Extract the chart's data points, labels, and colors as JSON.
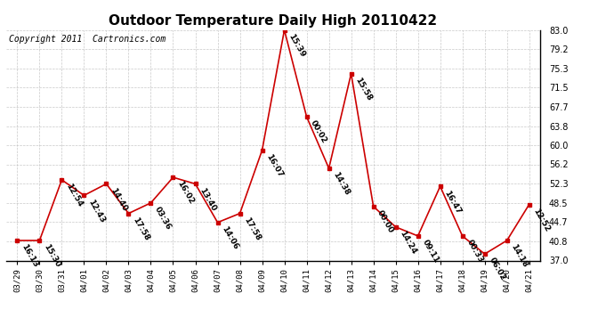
{
  "title": "Outdoor Temperature Daily High 20110422",
  "copyright": "Copyright 2011  Cartronics.com",
  "x_labels": [
    "03/29",
    "03/30",
    "03/31",
    "04/01",
    "04/02",
    "04/03",
    "04/04",
    "04/05",
    "04/06",
    "04/07",
    "04/08",
    "04/09",
    "04/10",
    "04/11",
    "04/12",
    "04/13",
    "04/14",
    "04/15",
    "04/16",
    "04/17",
    "04/18",
    "04/19",
    "04/20",
    "04/21"
  ],
  "y_values": [
    41.0,
    41.0,
    53.1,
    50.0,
    52.3,
    46.4,
    48.5,
    53.6,
    52.3,
    44.6,
    46.4,
    59.0,
    83.0,
    65.7,
    55.4,
    74.3,
    47.8,
    43.7,
    41.9,
    51.8,
    41.9,
    38.3,
    41.0,
    48.2
  ],
  "point_labels": [
    "16:13",
    "15:30",
    "12:54",
    "12:43",
    "14:40",
    "17:58",
    "03:36",
    "16:02",
    "13:40",
    "14:06",
    "17:58",
    "16:07",
    "15:39",
    "00:02",
    "14:38",
    "15:58",
    "00:00",
    "14:24",
    "09:11",
    "16:47",
    "00:33",
    "06:02",
    "14:18",
    "12:52"
  ],
  "line_color": "#cc0000",
  "marker_color": "#cc0000",
  "background_color": "#ffffff",
  "grid_color": "#bbbbbb",
  "title_fontsize": 11,
  "copyright_fontsize": 7,
  "label_fontsize": 6.5,
  "ytick_labels": [
    "37.0",
    "40.8",
    "44.7",
    "48.5",
    "52.3",
    "56.2",
    "60.0",
    "63.8",
    "67.7",
    "71.5",
    "75.3",
    "79.2",
    "83.0"
  ],
  "ytick_values": [
    37.0,
    40.8,
    44.7,
    48.5,
    52.3,
    56.2,
    60.0,
    63.8,
    67.7,
    71.5,
    75.3,
    79.2,
    83.0
  ],
  "ylim": [
    37.0,
    83.0
  ],
  "xlim": [
    -0.5,
    23.5
  ]
}
